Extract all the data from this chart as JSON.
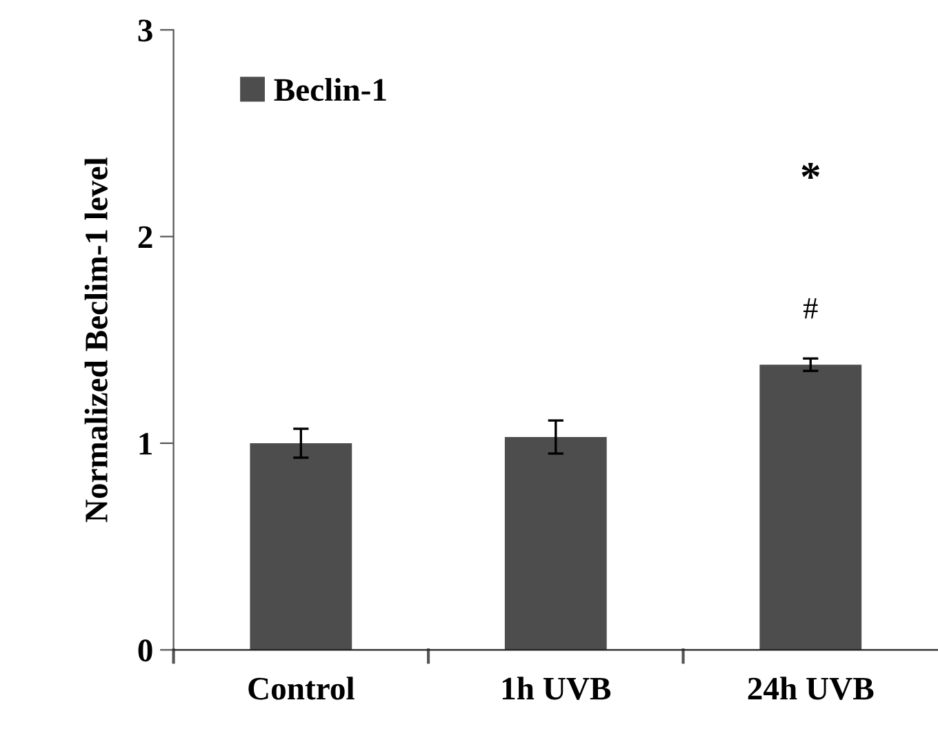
{
  "chart_data": {
    "type": "bar",
    "ylabel": "Normalized Beclim-1 level",
    "categories": [
      "Control",
      "1h UVB",
      "24h UVB"
    ],
    "series": [
      {
        "name": "Beclin-1",
        "color": "#4d4d4d",
        "values": [
          1.0,
          1.03,
          1.38
        ],
        "errors": [
          0.07,
          0.08,
          0.03
        ]
      }
    ],
    "ylim": [
      0,
      3
    ],
    "yticks": [
      0,
      1,
      2,
      3
    ],
    "grid": false,
    "legend": "top left",
    "annotations": [
      "*",
      "#"
    ]
  }
}
